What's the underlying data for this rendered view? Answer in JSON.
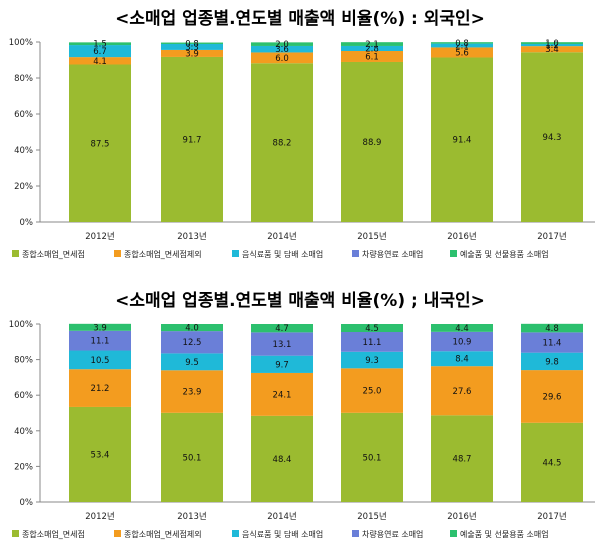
{
  "chart_data": [
    {
      "type": "bar",
      "stacked": true,
      "title": "<소매업 업종별.연도별 매출액 비율(%) : 외국인>",
      "categories": [
        "2012년",
        "2013년",
        "2014년",
        "2015년",
        "2016년",
        "2017년"
      ],
      "ylim": [
        0,
        100
      ],
      "yticks": [
        "0%",
        "20%",
        "40%",
        "60%",
        "80%",
        "100%"
      ],
      "grid": false,
      "legend_position": "bottom",
      "series": [
        {
          "name": "종합소매업_면세점",
          "color": "#9bbb30",
          "values": [
            87.5,
            91.7,
            88.2,
            88.9,
            91.4,
            94.3
          ]
        },
        {
          "name": "종합소매업_면세점제외",
          "color": "#f39c1f",
          "values": [
            4.1,
            3.9,
            6.0,
            6.1,
            5.6,
            3.4
          ]
        },
        {
          "name": "음식료품 및 담배 소매업",
          "color": "#1fb9d8",
          "values": [
            6.7,
            3.3,
            3.6,
            2.8,
            2.1,
            1.2
          ]
        },
        {
          "name": "차량용연료 소매업",
          "color": "#6a7fd8",
          "values": [
            null,
            null,
            null,
            null,
            null,
            null
          ]
        },
        {
          "name": "예술품 및 선물용품 소매업",
          "color": "#2cc06e",
          "values": [
            1.5,
            0.8,
            2.0,
            2.1,
            0.8,
            1.0
          ]
        }
      ]
    },
    {
      "type": "bar",
      "stacked": true,
      "title": "<소매업 업종별.연도별 매출액 비율(%) ; 내국인>",
      "categories": [
        "2012년",
        "2013년",
        "2014년",
        "2015년",
        "2016년",
        "2017년"
      ],
      "ylim": [
        0,
        100
      ],
      "yticks": [
        "0%",
        "20%",
        "40%",
        "60%",
        "80%",
        "100%"
      ],
      "grid": false,
      "legend_position": "bottom",
      "series": [
        {
          "name": "종합소매업_면세점",
          "color": "#9bbb30",
          "values": [
            53.4,
            50.1,
            48.4,
            50.1,
            48.7,
            44.5
          ]
        },
        {
          "name": "종합소매업_면세점제외",
          "color": "#f39c1f",
          "values": [
            21.2,
            23.9,
            24.1,
            25.0,
            27.6,
            29.6
          ]
        },
        {
          "name": "음식료품 및 담배 소매업",
          "color": "#1fb9d8",
          "values": [
            10.5,
            9.5,
            9.7,
            9.3,
            8.4,
            9.8
          ]
        },
        {
          "name": "차량용연료 소매업",
          "color": "#6a7fd8",
          "values": [
            11.1,
            12.5,
            13.1,
            11.1,
            10.9,
            11.4
          ]
        },
        {
          "name": "예술품 및 선물용품 소매업",
          "color": "#2cc06e",
          "values": [
            3.9,
            4.0,
            4.7,
            4.5,
            4.4,
            4.8
          ]
        }
      ]
    }
  ]
}
